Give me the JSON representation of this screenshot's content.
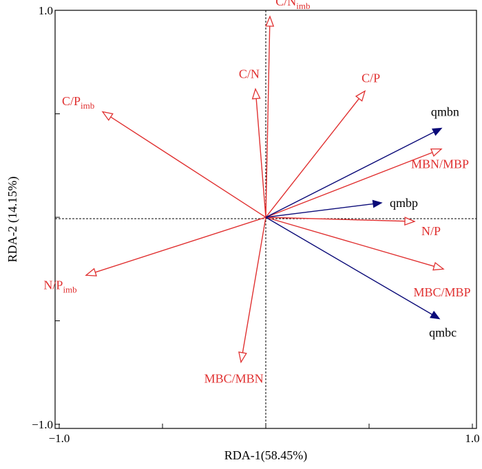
{
  "chart_data": {
    "type": "biplot",
    "xlabel": "RDA-1(58.45%)",
    "ylabel": "RDA-2 (14.15%)",
    "xlim": [
      -1.02,
      1.02
    ],
    "ylim": [
      -1.02,
      1.0
    ],
    "x_ticks": [
      -1.0,
      -0.5,
      0.0,
      0.5,
      1.0
    ],
    "y_ticks": [
      -1.0,
      -0.5,
      0.0,
      0.5,
      1.0
    ],
    "x_tick_labels": [
      "−1.0",
      "",
      "",
      "",
      "1.0"
    ],
    "y_tick_labels": [
      "−1.0",
      "",
      "",
      "",
      "1.0"
    ],
    "reference_lines": {
      "x": 0,
      "y": 0,
      "style": "dashed"
    },
    "colors": {
      "explanatory": "#e03030",
      "response": "#0a0a78"
    },
    "series": [
      {
        "group": "explanatory",
        "arrow": "open",
        "vectors": [
          {
            "label": "C/N",
            "sub": "imb",
            "x": 0.02,
            "y": 0.97
          },
          {
            "label": "C/N",
            "sub": "",
            "x": -0.05,
            "y": 0.62
          },
          {
            "label": "C/P",
            "sub": "",
            "x": 0.48,
            "y": 0.61
          },
          {
            "label": "C/P",
            "sub": "imb",
            "x": -0.79,
            "y": 0.51
          },
          {
            "label": "MBN/MBP",
            "sub": "",
            "x": 0.85,
            "y": 0.33
          },
          {
            "label": "N/P",
            "sub": "",
            "x": 0.72,
            "y": -0.02
          },
          {
            "label": "MBC/MBP",
            "sub": "",
            "x": 0.86,
            "y": -0.25
          },
          {
            "label": "N/P",
            "sub": "imb",
            "x": -0.87,
            "y": -0.28
          },
          {
            "label": "MBC/MBN",
            "sub": "",
            "x": -0.12,
            "y": -0.7
          }
        ]
      },
      {
        "group": "response",
        "arrow": "filled",
        "vectors": [
          {
            "label": "qmbn",
            "sub": "",
            "x": 0.85,
            "y": 0.43
          },
          {
            "label": "qmbp",
            "sub": "",
            "x": 0.56,
            "y": 0.07
          },
          {
            "label": "qmbc",
            "sub": "",
            "x": 0.84,
            "y": -0.49
          }
        ]
      }
    ]
  }
}
